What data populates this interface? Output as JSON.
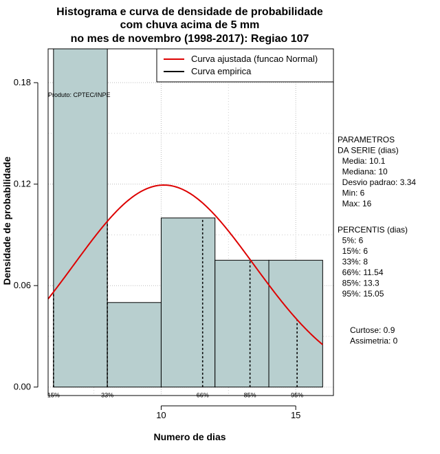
{
  "chart_data": {
    "type": "histogram",
    "title": [
      "Histograma e curva de densidade de probabilidade",
      "com chuva acima de 5 mm",
      "no mes de novembro (1998-2017): Regiao 107"
    ],
    "xlabel": "Numero de dias",
    "ylabel": "Densidade de probabilidade",
    "xlim": [
      5.8,
      16.4
    ],
    "ylim": [
      -0.005,
      0.2
    ],
    "xticks": [
      10,
      15
    ],
    "yticks": [
      0.0,
      0.06,
      0.12,
      0.18
    ],
    "ytick_labels": [
      "0.00",
      "0.06",
      "0.12",
      "0.18"
    ],
    "grid": true,
    "bar_color": "#b8cfcf",
    "bars": [
      {
        "x0": 6,
        "x1": 8,
        "density": 0.2
      },
      {
        "x0": 8,
        "x1": 10,
        "density": 0.05
      },
      {
        "x0": 10,
        "x1": 12,
        "density": 0.1
      },
      {
        "x0": 12,
        "x1": 14,
        "density": 0.075
      },
      {
        "x0": 14,
        "x1": 16,
        "density": 0.075
      }
    ],
    "normal_curve": {
      "mean": 10.1,
      "sd": 3.34,
      "color": "#dd0000",
      "x_from": 5.8,
      "x_to": 16
    }
  },
  "legend": {
    "items": [
      {
        "label": "Curva ajustada (funcao Normal)",
        "color": "#dd0000"
      },
      {
        "label": "Curva empirica",
        "color": "#000000"
      }
    ]
  },
  "product_label": "Produto: CPTEC/INPE",
  "parameters": {
    "lines": [
      "PARAMETROS",
      "DA SERIE (dias)",
      "  Media: 10.1",
      "  Mediana: 10",
      "  Desvio padrao: 3.34",
      "  Min: 6",
      "  Max: 16"
    ]
  },
  "percentiles": {
    "lines": [
      "PERCENTIS (dias)",
      "  5%: 6",
      "  15%: 6",
      "  33%: 8",
      "  66%: 11.54",
      "  85%: 13.3",
      "  95%: 15.05"
    ],
    "markers": [
      {
        "label": "15%",
        "x": 6
      },
      {
        "label": "33%",
        "x": 8
      },
      {
        "label": "66%",
        "x": 11.54
      },
      {
        "label": "85%",
        "x": 13.3
      },
      {
        "label": "95%",
        "x": 15.05
      }
    ]
  },
  "shape": {
    "lines": [
      "Curtose: 0.9",
      "Assimetria: 0"
    ]
  }
}
